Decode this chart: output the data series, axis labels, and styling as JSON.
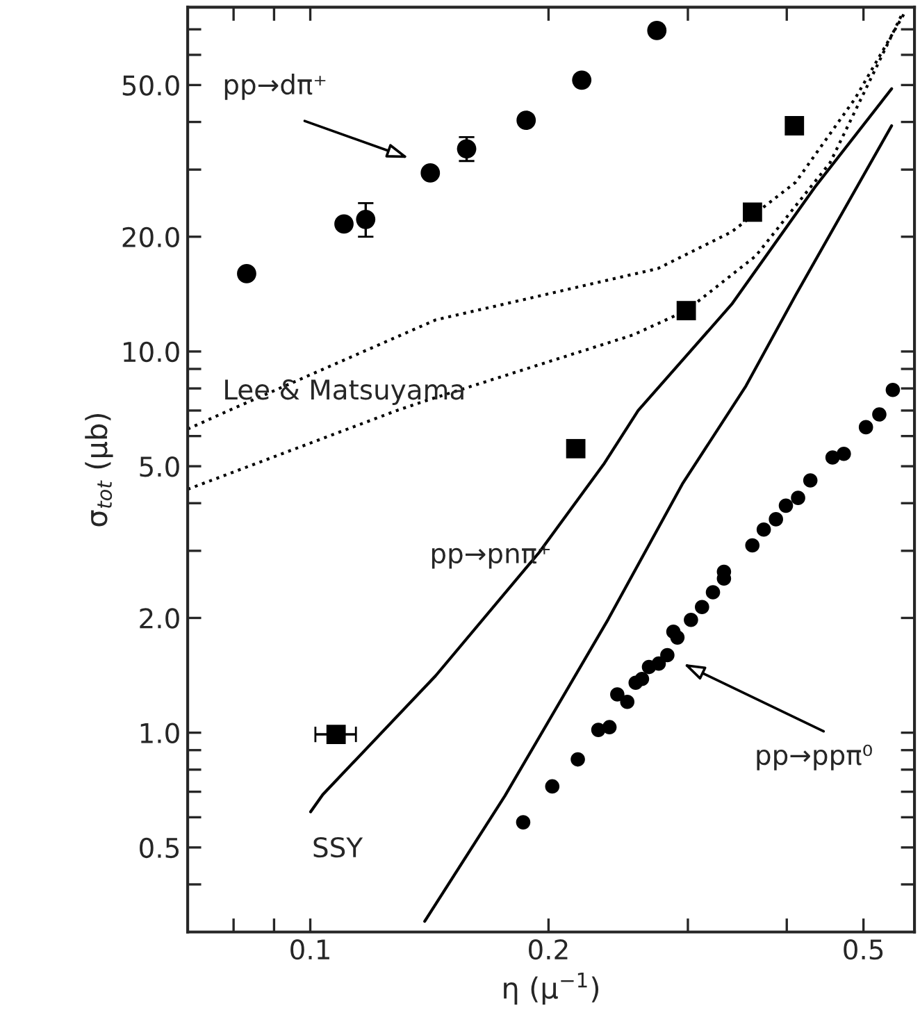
{
  "chart_data": {
    "type": "scatter",
    "xlabel": "η (μ$^{−1}$)",
    "ylabel": "σ$_{tot}$ (μb)",
    "log": "xy",
    "xlim": [
      0.07,
      0.58
    ],
    "ylim": [
      0.3,
      80
    ],
    "xticks": [
      {
        "value": 0.08,
        "label": null
      },
      {
        "value": 0.09,
        "label": null
      },
      0.1,
      0.2,
      {
        "value": 0.3,
        "label": null
      },
      {
        "value": 0.4,
        "label": null
      },
      0.5
    ],
    "yticks": [
      {
        "value": 0.4,
        "label": null
      },
      0.5,
      {
        "value": 0.6,
        "label": null
      },
      {
        "value": 0.7,
        "label": null
      },
      {
        "value": 0.8,
        "label": null
      },
      {
        "value": 0.9,
        "label": null
      },
      {
        "value": 1,
        "label": "1.0"
      },
      {
        "value": 2,
        "label": "2.0"
      },
      {
        "value": 3,
        "label": null
      },
      {
        "value": 4,
        "label": null
      },
      {
        "value": 5,
        "label": "5.0"
      },
      {
        "value": 6,
        "label": null
      },
      {
        "value": 7,
        "label": null
      },
      {
        "value": 8,
        "label": null
      },
      {
        "value": 9,
        "label": null
      },
      {
        "value": 10,
        "label": "10.0"
      },
      {
        "value": 20,
        "label": "20.0"
      },
      {
        "value": 30,
        "label": null
      },
      {
        "value": 40,
        "label": null
      },
      {
        "value": 50,
        "label": "50.0"
      },
      {
        "value": 60,
        "label": null
      },
      {
        "value": 70,
        "label": null
      }
    ],
    "series": [
      {
        "marker": "circle",
        "color": "#000000",
        "x": [
          0.0831,
          0.1103,
          0.1175,
          0.1418,
          0.1576,
          0.1874,
          0.2203,
          0.2741
        ],
        "values": [
          16.0,
          21.6,
          22.2,
          29.4,
          34.0,
          40.4,
          51.5,
          69.5
        ],
        "errors": [
          null,
          null,
          [
            20.0,
            24.5
          ],
          null,
          [
            31.6,
            36.5
          ],
          null,
          null,
          null
        ]
      },
      {
        "marker": "square",
        "color": "#000000",
        "x": [
          0.1078,
          0.2165,
          0.2986,
          0.362,
          0.409
        ],
        "values": [
          0.99,
          5.56,
          12.8,
          23.2,
          39.1
        ],
        "xerrors": [
          [
            0.1015,
            0.1142
          ],
          null,
          null,
          null,
          null
        ]
      },
      {
        "marker": "circle",
        "color": "#000000",
        "x": [
          0.1858,
          0.2022,
          0.2178,
          0.2312,
          0.2388,
          0.2443,
          0.2515,
          0.2577,
          0.2625,
          0.2679,
          0.2756,
          0.2826,
          0.2876,
          0.291,
          0.3027,
          0.3126,
          0.3227,
          0.3332,
          0.3332,
          0.3619,
          0.3741,
          0.3876,
          0.399,
          0.4134,
          0.4284,
          0.457,
          0.4722,
          0.5036,
          0.5236,
          0.5446
        ],
        "values": [
          0.582,
          0.723,
          0.851,
          1.017,
          1.034,
          1.26,
          1.205,
          1.352,
          1.384,
          1.487,
          1.518,
          1.597,
          1.841,
          1.777,
          1.977,
          2.136,
          2.335,
          2.644,
          2.537,
          3.1,
          3.41,
          3.63,
          3.94,
          4.13,
          4.59,
          5.27,
          5.39,
          6.33,
          6.84,
          7.93
        ]
      },
      {
        "type": "line",
        "line_style": "solid",
        "color": "#000000",
        "x": [
          0.1001,
          0.1037,
          0.144,
          0.1946,
          0.2348,
          0.2596,
          0.3408,
          0.4342,
          0.5427
        ],
        "values": [
          0.62,
          0.688,
          1.41,
          2.97,
          5.06,
          7.0,
          13.3,
          27.0,
          48.9
        ]
      },
      {
        "type": "line",
        "line_style": "solid",
        "color": "#000000",
        "x": [
          0.1395,
          0.1761,
          0.2378,
          0.2952,
          0.3552,
          0.4105,
          0.5427
        ],
        "values": [
          0.32,
          0.682,
          1.98,
          4.49,
          8.12,
          14.06,
          39.1
        ]
      },
      {
        "type": "line",
        "line_style": "dotted",
        "color": "#000000",
        "x": [
          0.07,
          0.0789,
          0.144,
          0.2748,
          0.3408,
          0.4105,
          0.4877,
          0.565
        ],
        "values": [
          6.26,
          7.0,
          12.1,
          16.5,
          20.6,
          27.8,
          46.0,
          78
        ]
      },
      {
        "type": "line",
        "line_style": "dotted",
        "color": "#000000",
        "x": [
          0.07,
          0.1286,
          0.14,
          0.2557,
          0.2986,
          0.3654,
          0.4538,
          0.5585
        ],
        "values": [
          4.35,
          7.0,
          7.43,
          11.05,
          12.8,
          17.8,
          31.3,
          76.2
        ]
      }
    ],
    "annotations": [
      "pp→dπ⁺",
      "Lee & Matsuyama",
      "pp→pnπ⁺",
      "pp→ppπ⁰",
      "SSY"
    ]
  }
}
